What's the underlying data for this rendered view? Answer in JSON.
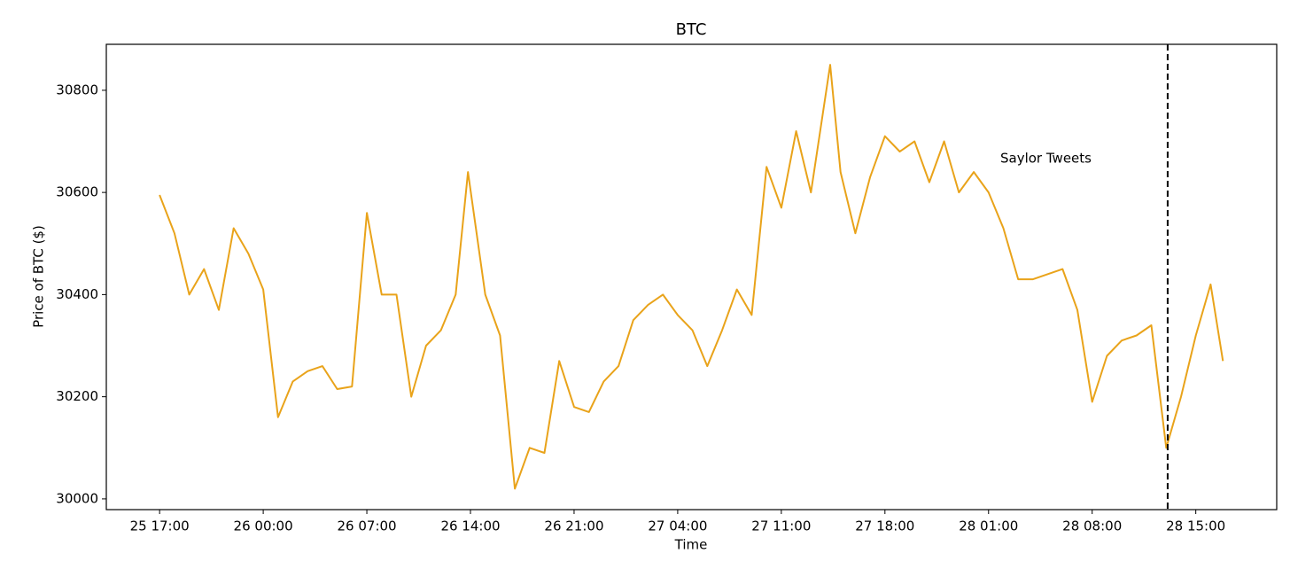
{
  "chart_data": {
    "type": "line",
    "title": "BTC",
    "xlabel": "Time",
    "ylabel": "Price of BTC ($)",
    "x": [
      "25 17:00",
      "25 18:00",
      "25 19:00",
      "25 20:00",
      "25 21:00",
      "25 22:00",
      "25 23:00",
      "26 00:00",
      "26 01:00",
      "26 02:00",
      "26 03:00",
      "26 04:00",
      "26 05:00",
      "26 06:00",
      "26 07:00",
      "26 08:00",
      "26 09:00",
      "26 10:00",
      "26 11:00",
      "26 12:00",
      "26 13:00",
      "26 13:50",
      "26 15:00",
      "26 16:00",
      "26 17:00",
      "26 18:00",
      "26 19:00",
      "26 20:00",
      "26 21:00",
      "26 22:00",
      "26 23:00",
      "27 00:00",
      "27 01:00",
      "27 02:00",
      "27 03:00",
      "27 04:00",
      "27 05:00",
      "27 06:00",
      "27 07:00",
      "27 08:00",
      "27 09:00",
      "27 10:00",
      "27 11:00",
      "27 12:00",
      "27 13:00",
      "27 14:18",
      "27 15:00",
      "27 16:00",
      "27 17:00",
      "27 18:00",
      "27 19:00",
      "27 20:00",
      "27 21:00",
      "27 22:00",
      "27 23:00",
      "28 00:00",
      "28 01:00",
      "28 02:00",
      "28 03:00",
      "28 04:00",
      "28 05:00",
      "28 06:00",
      "28 07:00",
      "28 08:00",
      "28 09:00",
      "28 10:00",
      "28 11:00",
      "28 12:00",
      "28 13:00",
      "28 14:00",
      "28 15:00",
      "28 16:00",
      "28 16:50"
    ],
    "series": [
      {
        "name": "BTC",
        "color": "#e9a31a",
        "values": [
          30595,
          30520,
          30400,
          30450,
          30370,
          30530,
          30480,
          30410,
          30160,
          30230,
          30250,
          30260,
          30215,
          30220,
          30560,
          30400,
          30400,
          30200,
          30300,
          30330,
          30400,
          30640,
          30400,
          30320,
          30020,
          30100,
          30090,
          30270,
          30180,
          30170,
          30230,
          30260,
          30350,
          30380,
          30400,
          30360,
          30330,
          30260,
          30330,
          30410,
          30360,
          30650,
          30570,
          30720,
          30600,
          30850,
          30640,
          30520,
          30630,
          30710,
          30680,
          30700,
          30620,
          30700,
          30600,
          30640,
          30600,
          30530,
          30430,
          30430,
          30440,
          30450,
          30370,
          30190,
          30280,
          30310,
          30320,
          30340,
          30100,
          30200,
          30320,
          30420,
          30270
        ]
      }
    ],
    "xlim": [
      "25 13:24",
      "28 20:28"
    ],
    "xticks": [
      "25 17:00",
      "26 00:00",
      "26 07:00",
      "26 14:00",
      "26 21:00",
      "27 04:00",
      "27 11:00",
      "27 18:00",
      "28 01:00",
      "28 08:00",
      "28 15:00"
    ],
    "ylim": [
      29979,
      30890
    ],
    "yticks": [
      30000,
      30200,
      30400,
      30600,
      30800
    ],
    "vline": "28 13:06",
    "annotation": "Saylor Tweets"
  }
}
